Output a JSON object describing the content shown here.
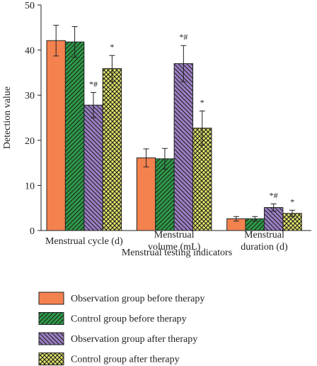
{
  "chart_data": {
    "type": "bar",
    "ylabel": "Detection value",
    "xlabel": "Menstrual testing indicators",
    "categories": [
      "Menstrual cycle (d)",
      "Menstrual\nvolume (mL)",
      "Menstrual\nduration (d)"
    ],
    "ylim": [
      0,
      50
    ],
    "yticks": [
      0,
      10,
      20,
      30,
      40,
      50
    ],
    "series": [
      {
        "name": "Observation group before therapy",
        "color": "#f4824f",
        "hatch": "none",
        "values": [
          42.1,
          16.1,
          2.6
        ],
        "errors": [
          3.4,
          2.0,
          0.5
        ]
      },
      {
        "name": "Control group before therapy",
        "color": "#2e9a48",
        "hatch": "/",
        "values": [
          41.8,
          15.9,
          2.6
        ],
        "errors": [
          3.4,
          2.3,
          0.5
        ]
      },
      {
        "name": "Observation group after therapy",
        "color": "#9b7fc4",
        "hatch": "\\",
        "values": [
          27.8,
          37.0,
          5.1
        ],
        "errors": [
          2.8,
          4.0,
          0.8
        ],
        "annotations": [
          "*#",
          "*#",
          "*#"
        ]
      },
      {
        "name": "Control group after therapy",
        "color": "#e0e36a",
        "hatch": "x",
        "values": [
          35.9,
          22.7,
          3.8
        ],
        "errors": [
          2.9,
          3.8,
          0.7
        ],
        "annotations": [
          "*",
          "*",
          "*"
        ]
      }
    ]
  }
}
